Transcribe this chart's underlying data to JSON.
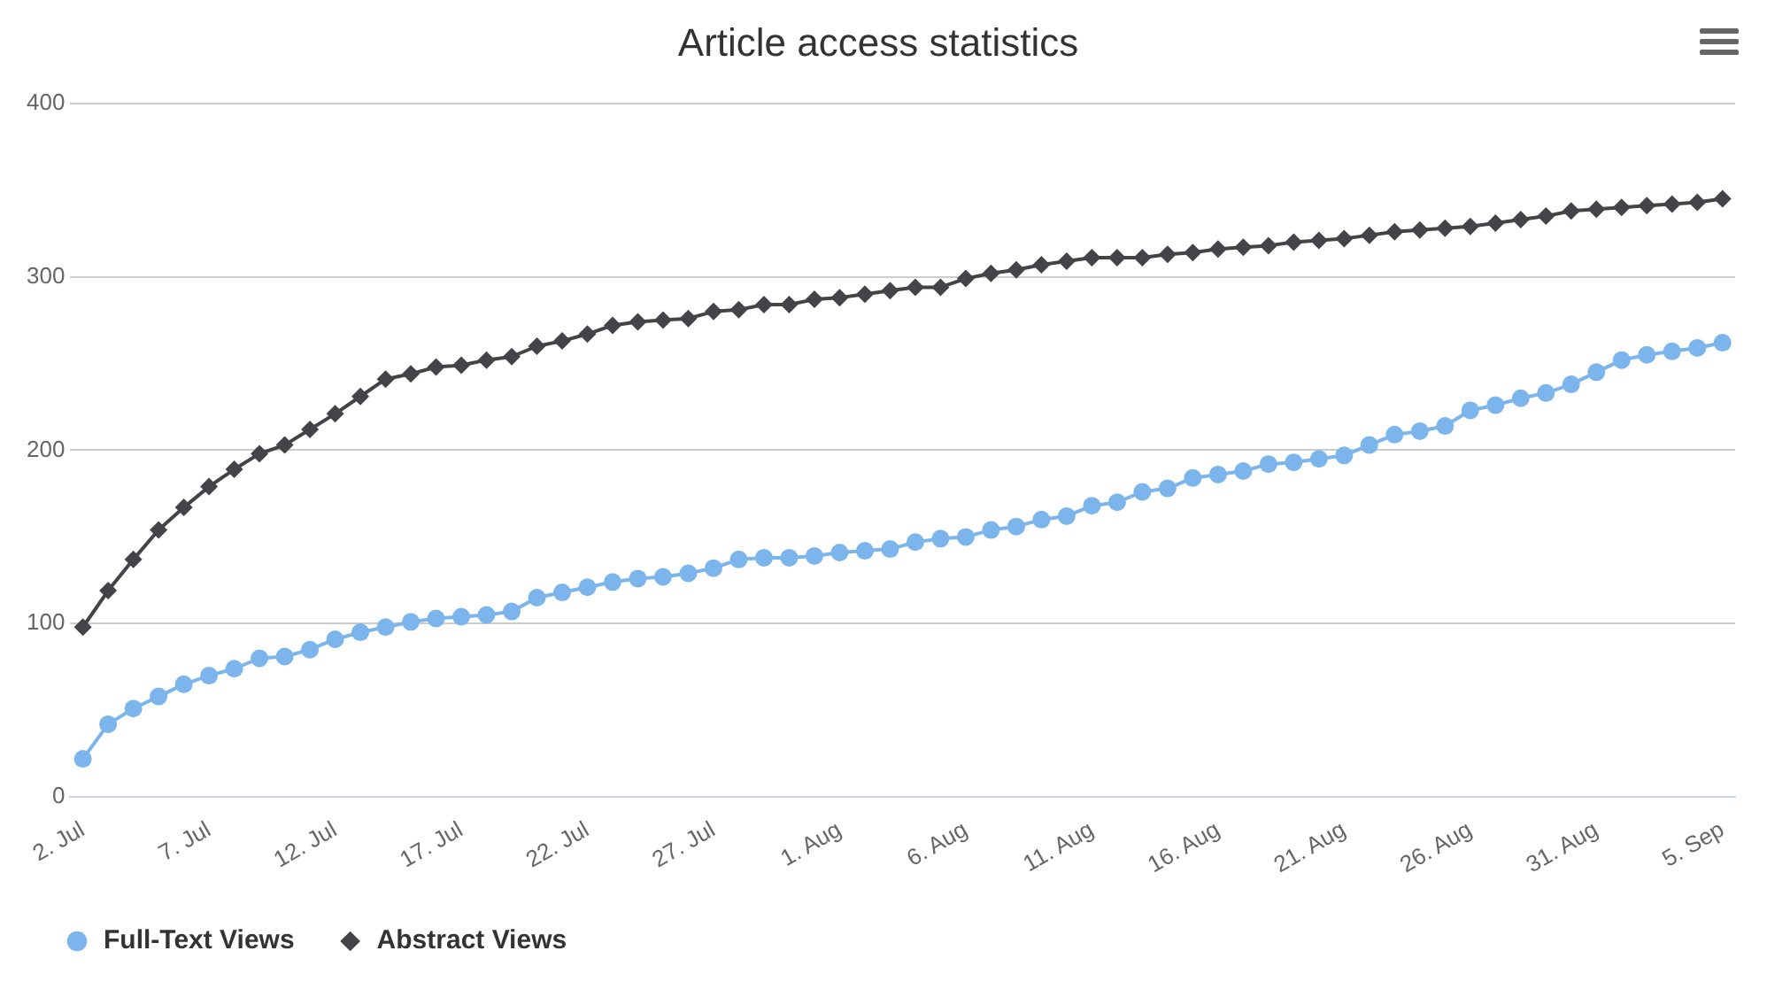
{
  "chart_data": {
    "type": "line",
    "title": "Article access statistics",
    "x": [
      "--07-02",
      "--07-03",
      "--07-04",
      "--07-05",
      "--07-06",
      "--07-07",
      "--07-08",
      "--07-09",
      "--07-10",
      "--07-11",
      "--07-12",
      "--07-13",
      "--07-14",
      "--07-15",
      "--07-16",
      "--07-17",
      "--07-18",
      "--07-19",
      "--07-20",
      "--07-21",
      "--07-22",
      "--07-23",
      "--07-24",
      "--07-25",
      "--07-26",
      "--07-27",
      "--07-28",
      "--07-29",
      "--07-30",
      "--07-31",
      "--08-01",
      "--08-02",
      "--08-03",
      "--08-04",
      "--08-05",
      "--08-06",
      "--08-07",
      "--08-08",
      "--08-09",
      "--08-10",
      "--08-11",
      "--08-12",
      "--08-13",
      "--08-14",
      "--08-15",
      "--08-16",
      "--08-17",
      "--08-18",
      "--08-19",
      "--08-20",
      "--08-21",
      "--08-22",
      "--08-23",
      "--08-24",
      "--08-25",
      "--08-26",
      "--08-27",
      "--08-28",
      "--08-29",
      "--08-30",
      "--08-31",
      "--09-01",
      "--09-02",
      "--09-03",
      "--09-04",
      "--09-05"
    ],
    "series": [
      {
        "name": "Full-Text Views",
        "color": "#7cb5ec",
        "marker": "circle",
        "values": [
          22,
          42,
          51,
          58,
          65,
          70,
          74,
          80,
          81,
          85,
          91,
          95,
          98,
          101,
          103,
          104,
          105,
          107,
          115,
          118,
          121,
          124,
          126,
          127,
          129,
          132,
          137,
          138,
          138,
          139,
          141,
          142,
          143,
          147,
          149,
          150,
          154,
          156,
          160,
          162,
          168,
          170,
          176,
          178,
          184,
          186,
          188,
          192,
          193,
          195,
          197,
          203,
          209,
          211,
          214,
          223,
          226,
          230,
          233,
          238,
          245,
          252,
          255,
          257,
          259,
          262
        ]
      },
      {
        "name": "Abstract Views",
        "color": "#434348",
        "marker": "diamond",
        "values": [
          98,
          119,
          137,
          154,
          167,
          179,
          189,
          198,
          203,
          212,
          221,
          231,
          241,
          244,
          248,
          249,
          252,
          254,
          260,
          263,
          267,
          272,
          274,
          275,
          276,
          280,
          281,
          284,
          284,
          287,
          288,
          290,
          292,
          294,
          294,
          299,
          302,
          304,
          307,
          309,
          311,
          311,
          311,
          313,
          314,
          316,
          317,
          318,
          320,
          321,
          322,
          324,
          326,
          327,
          328,
          329,
          331,
          333,
          335,
          338,
          339,
          340,
          341,
          342,
          343,
          345
        ]
      }
    ],
    "xlim": [
      "--07-01T12:00",
      "--09-05T12:00"
    ],
    "xticks": [
      {
        "value": "--07-02",
        "label": "2. Jul"
      },
      {
        "value": "--07-07",
        "label": "7. Jul"
      },
      {
        "value": "--07-12",
        "label": "12. Jul"
      },
      {
        "value": "--07-17",
        "label": "17. Jul"
      },
      {
        "value": "--07-22",
        "label": "22. Jul"
      },
      {
        "value": "--07-27",
        "label": "27. Jul"
      },
      {
        "value": "--08-01",
        "label": "1. Aug"
      },
      {
        "value": "--08-06",
        "label": "6. Aug"
      },
      {
        "value": "--08-11",
        "label": "11. Aug"
      },
      {
        "value": "--08-16",
        "label": "16. Aug"
      },
      {
        "value": "--08-21",
        "label": "21. Aug"
      },
      {
        "value": "--08-26",
        "label": "26. Aug"
      },
      {
        "value": "--08-31",
        "label": "31. Aug"
      },
      {
        "value": "--09-05",
        "label": "5. Sep"
      }
    ],
    "ylim": [
      0,
      400
    ],
    "yticks": [
      0,
      100,
      200,
      300,
      400
    ],
    "grid": "y",
    "legend": "bottom left",
    "line_style": "solid"
  }
}
